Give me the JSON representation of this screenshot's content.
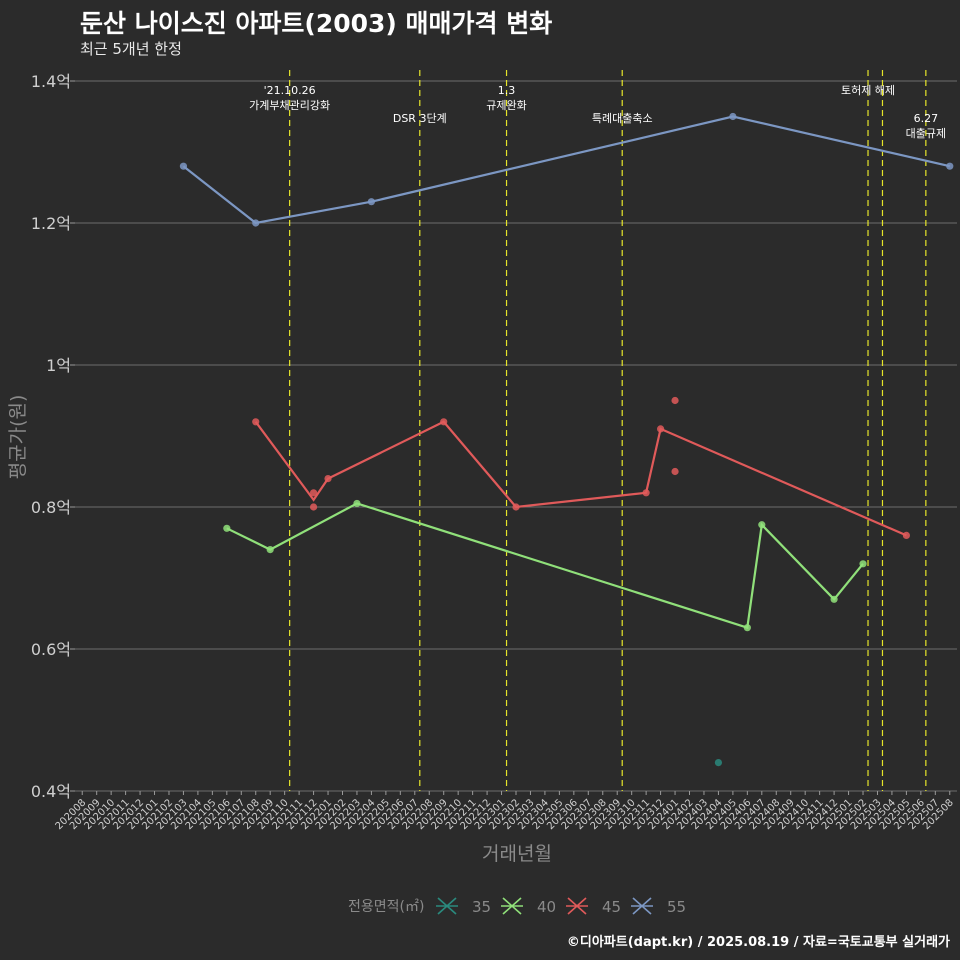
{
  "page": {
    "title": "둔산 나이스진 아파트(2003) 매매가격 변화",
    "subtitle": "최근 5개년 한정",
    "footer": "©디아파트(dapt.kr) / 2025.08.19 / 자료=국토교통부 실거래가"
  },
  "chart_data": {
    "type": "line",
    "xlabel": "거래년월",
    "ylabel": "평균가(원)",
    "ylim": [
      0.4,
      1.4
    ],
    "yticks": [
      0.4,
      0.6,
      0.8,
      1.0,
      1.2,
      1.4
    ],
    "ytick_labels": [
      "0.4억",
      "0.6억",
      "0.8억",
      "1억",
      "1.2억",
      "1.4억"
    ],
    "categories": [
      "202008",
      "202009",
      "202010",
      "202011",
      "202012",
      "202101",
      "202102",
      "202103",
      "202104",
      "202105",
      "202106",
      "202107",
      "202108",
      "202109",
      "202110",
      "202111",
      "202112",
      "202201",
      "202202",
      "202203",
      "202204",
      "202205",
      "202206",
      "202207",
      "202208",
      "202209",
      "202210",
      "202211",
      "202212",
      "202301",
      "202302",
      "202303",
      "202304",
      "202305",
      "202306",
      "202307",
      "202308",
      "202309",
      "202310",
      "202311",
      "202312",
      "202401",
      "202402",
      "202403",
      "202404",
      "202405",
      "202406",
      "202407",
      "202408",
      "202409",
      "202410",
      "202411",
      "202412",
      "202501",
      "202502",
      "202503",
      "202504",
      "202505",
      "202506",
      "202507",
      "202508"
    ],
    "legend_title": "전용면적(㎡)",
    "events": [
      {
        "month": "202110",
        "lines": [
          "'21.10.26",
          "가계부채관리강화"
        ],
        "level": 1
      },
      {
        "month": "202207",
        "lines": [
          "DSR 3단계"
        ],
        "level": 2
      },
      {
        "month": "202301",
        "lines": [
          "1.3",
          "규제완화"
        ],
        "level": 1
      },
      {
        "month": "202309",
        "lines": [
          "특례대출축소"
        ],
        "level": 2
      },
      {
        "month": "202502",
        "lines": [
          "토허제 해제"
        ],
        "level": 1
      },
      {
        "month": "202503",
        "lines": [],
        "level": 1
      },
      {
        "month": "202506",
        "lines": [
          "6.27",
          "대출규제"
        ],
        "level": 2
      }
    ],
    "series": [
      {
        "name": "35",
        "color": "#2a8a7e",
        "line": [],
        "points": [
          [
            "202404",
            0.44
          ]
        ]
      },
      {
        "name": "40",
        "color": "#90e07a",
        "line": [
          [
            "202106",
            0.77
          ],
          [
            "202109",
            0.74
          ],
          [
            "202203",
            0.805
          ],
          [
            "202406",
            0.63
          ],
          [
            "202407",
            0.775
          ],
          [
            "202412",
            0.67
          ],
          [
            "202502",
            0.72
          ]
        ],
        "points": [
          [
            "202106",
            0.77
          ],
          [
            "202109",
            0.74
          ],
          [
            "202203",
            0.805
          ],
          [
            "202406",
            0.63
          ],
          [
            "202407",
            0.775
          ],
          [
            "202412",
            0.67
          ],
          [
            "202502",
            0.72
          ]
        ]
      },
      {
        "name": "45",
        "color": "#e05a5a",
        "line": [
          [
            "202108",
            0.92
          ],
          [
            "202112",
            0.81
          ],
          [
            "202201",
            0.84
          ],
          [
            "202209",
            0.92
          ],
          [
            "202302",
            0.8
          ],
          [
            "202311",
            0.82
          ],
          [
            "202312",
            0.91
          ],
          [
            "202505",
            0.76
          ]
        ],
        "points": [
          [
            "202108",
            0.92
          ],
          [
            "202112",
            0.82
          ],
          [
            "202112",
            0.8
          ],
          [
            "202201",
            0.84
          ],
          [
            "202209",
            0.92
          ],
          [
            "202302",
            0.8
          ],
          [
            "202311",
            0.82
          ],
          [
            "202312",
            0.91
          ],
          [
            "202401",
            0.95
          ],
          [
            "202401",
            0.85
          ],
          [
            "202505",
            0.76
          ]
        ]
      },
      {
        "name": "55",
        "color": "#7c97c3",
        "line": [
          [
            "202103",
            1.28
          ],
          [
            "202108",
            1.2
          ],
          [
            "202204",
            1.23
          ],
          [
            "202405",
            1.35
          ],
          [
            "202508",
            1.28
          ]
        ],
        "points": [
          [
            "202103",
            1.28
          ],
          [
            "202108",
            1.2
          ],
          [
            "202204",
            1.23
          ],
          [
            "202405",
            1.35
          ],
          [
            "202508",
            1.28
          ]
        ]
      }
    ]
  }
}
